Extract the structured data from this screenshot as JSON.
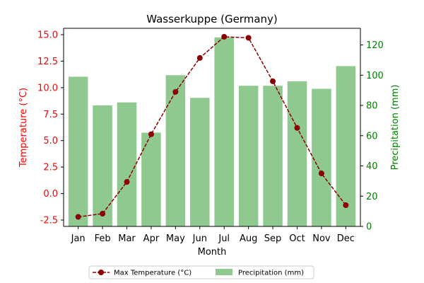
{
  "colors": {
    "left_axis": "#ff0000",
    "right_axis": "#008000",
    "line": "#8b0000",
    "bars": "#90c990",
    "axis_frame": "#000000"
  },
  "chart_data": {
    "type": "bar",
    "title": "Wasserkuppe (Germany)",
    "xlabel": "Month",
    "ylabel_left": "Temperature (°C)",
    "ylabel_right": "Precipitation (mm)",
    "categories": [
      "Jan",
      "Feb",
      "Mar",
      "Apr",
      "May",
      "Jun",
      "Jul",
      "Aug",
      "Sep",
      "Oct",
      "Nov",
      "Dec"
    ],
    "series": [
      {
        "name": "Max Temperature (°C)",
        "type": "line",
        "axis": "left",
        "values": [
          -2.2,
          -1.9,
          1.1,
          5.6,
          9.6,
          12.8,
          14.8,
          14.7,
          10.6,
          6.2,
          1.9,
          -1.1
        ]
      },
      {
        "name": "Precipitation (mm)",
        "type": "bar",
        "axis": "right",
        "values": [
          99,
          80,
          82,
          62,
          100,
          85,
          125,
          93,
          93,
          96,
          91,
          106
        ]
      }
    ],
    "ylim_left": [
      -3.1,
      15.6
    ],
    "yticks_left": [
      "-2.5",
      "0.0",
      "2.5",
      "5.0",
      "7.5",
      "10.0",
      "12.5",
      "15.0"
    ],
    "ylim_right": [
      0,
      131
    ],
    "yticks_right": [
      "0",
      "20",
      "40",
      "60",
      "80",
      "100",
      "120"
    ],
    "grid": false,
    "legend_position": "bottom-center"
  }
}
